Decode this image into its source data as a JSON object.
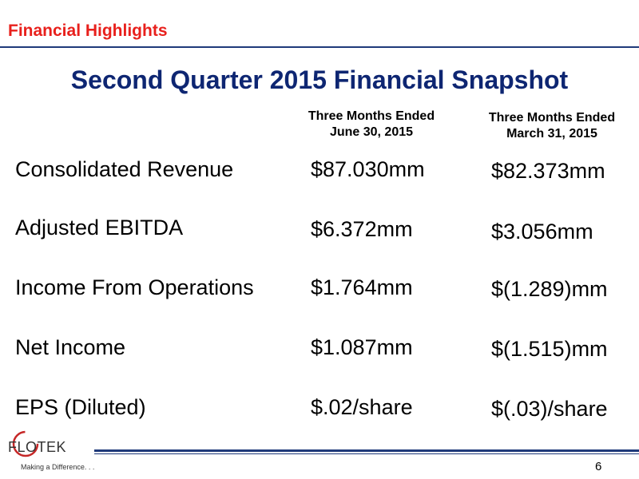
{
  "header": {
    "section_label": "Financial Highlights",
    "title": "Second Quarter 2015 Financial Snapshot"
  },
  "columns": [
    {
      "line1": "Three Months Ended",
      "line2": "June 30, 2015"
    },
    {
      "line1": "Three Months Ended",
      "line2": "March 31, 2015"
    }
  ],
  "rows": [
    {
      "label": "Consolidated Revenue",
      "q2": "$87.030mm",
      "q1": "$82.373mm"
    },
    {
      "label": "Adjusted EBITDA",
      "q2": "$6.372mm",
      "q1": "$3.056mm"
    },
    {
      "label": "Income From Operations",
      "q2": "$1.764mm",
      "q1": "$(1.289)mm"
    },
    {
      "label": "Net Income",
      "q2": "$1.087mm",
      "q1": "$(1.515)mm"
    },
    {
      "label": "EPS (Diluted)",
      "q2": "$.02/share",
      "q1": "$(.03)/share"
    }
  ],
  "footer": {
    "logo_text": "FLOTEK",
    "tagline": "Making a Difference. . .",
    "page_number": "6"
  },
  "colors": {
    "section_label": "#e8201c",
    "title": "#0e2672",
    "rule": "#1f3a7a"
  }
}
